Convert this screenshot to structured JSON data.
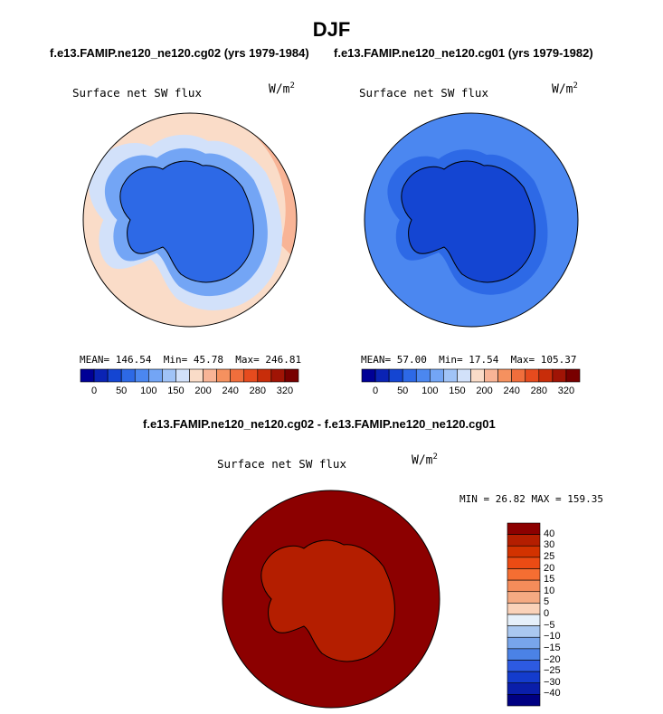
{
  "page_title": "DJF",
  "chart_data": [
    {
      "type": "heatmap",
      "projection": "south polar stereographic",
      "header": "f.e13.FAMIP.ne120_ne120.cg02 (yrs 1979-1984)",
      "title": "Surface net SW flux",
      "units_base": "W/m",
      "units_exp": "2",
      "stats": {
        "mean_label": "MEAN=",
        "mean": "146.54",
        "min_label": "Min=",
        "min": "45.78",
        "max_label": "Max=",
        "max": "246.81"
      },
      "colorbar": {
        "orientation": "horizontal",
        "levels": [
          0,
          25,
          50,
          75,
          100,
          125,
          150,
          175,
          200,
          220,
          240,
          260,
          280,
          300,
          320
        ],
        "tick_labels": [
          "0",
          "50",
          "100",
          "150",
          "200",
          "240",
          "280",
          "320"
        ],
        "colors": [
          "#000096",
          "#0a23b4",
          "#1445d2",
          "#2d69e6",
          "#4b87f0",
          "#73a5f5",
          "#a0c3f7",
          "#d2e1fa",
          "#fadcc8",
          "#f8b496",
          "#f5915f",
          "#f06e3c",
          "#e64b1e",
          "#c82d0a",
          "#a01405",
          "#780000"
        ]
      },
      "field_levels": {
        "ocean": "175-200",
        "continent": "25-50",
        "sea_ice_margin": "75-125"
      }
    },
    {
      "type": "heatmap",
      "projection": "south polar stereographic",
      "header": "f.e13.FAMIP.ne120_ne120.cg01 (yrs 1979-1982)",
      "title": "Surface net SW flux",
      "units_base": "W/m",
      "units_exp": "2",
      "stats": {
        "mean_label": "MEAN=",
        "mean": "57.00",
        "min_label": "Min=",
        "min": "17.54",
        "max_label": "Max=",
        "max": "105.37"
      },
      "colorbar": {
        "orientation": "horizontal",
        "levels": [
          0,
          25,
          50,
          75,
          100,
          125,
          150,
          175,
          200,
          220,
          240,
          260,
          280,
          300,
          320
        ],
        "tick_labels": [
          "0",
          "50",
          "100",
          "150",
          "200",
          "240",
          "280",
          "320"
        ],
        "colors": [
          "#000096",
          "#0a23b4",
          "#1445d2",
          "#2d69e6",
          "#4b87f0",
          "#73a5f5",
          "#a0c3f7",
          "#d2e1fa",
          "#fadcc8",
          "#f8b496",
          "#f5915f",
          "#f06e3c",
          "#e64b1e",
          "#c82d0a",
          "#a01405",
          "#780000"
        ]
      },
      "field_levels": {
        "ocean": "50-75",
        "continent": "25-50"
      }
    },
    {
      "type": "heatmap",
      "projection": "south polar stereographic",
      "header": "f.e13.FAMIP.ne120_ne120.cg02 - f.e13.FAMIP.ne120_ne120.cg01",
      "title": "Surface net SW flux",
      "units_base": "W/m",
      "units_exp": "2",
      "stats": {
        "min_label": "MIN =",
        "min": "26.82",
        "max_label": "MAX =",
        "max": "159.35"
      },
      "colorbar": {
        "orientation": "vertical",
        "levels": [
          -40,
          -30,
          -25,
          -20,
          -15,
          -10,
          -5,
          0,
          5,
          10,
          15,
          20,
          25,
          30,
          40
        ],
        "tick_labels": [
          "40",
          "30",
          "25",
          "20",
          "15",
          "10",
          "5",
          "0",
          "−5",
          "−10",
          "−15",
          "−20",
          "−25",
          "−30",
          "−40"
        ],
        "colors_top_to_bottom": [
          "#8c0000",
          "#b41e00",
          "#d23200",
          "#eb4b14",
          "#f56e32",
          "#f58c5a",
          "#f5aa82",
          "#fad2b9",
          "#e6f0fa",
          "#aac8f0",
          "#78a5eb",
          "#4b82e6",
          "#2d5ae1",
          "#143ccd",
          "#0a1eaa",
          "#000082"
        ]
      },
      "field_levels": {
        "ocean": ">40",
        "continent_interior": "30-40"
      }
    }
  ]
}
